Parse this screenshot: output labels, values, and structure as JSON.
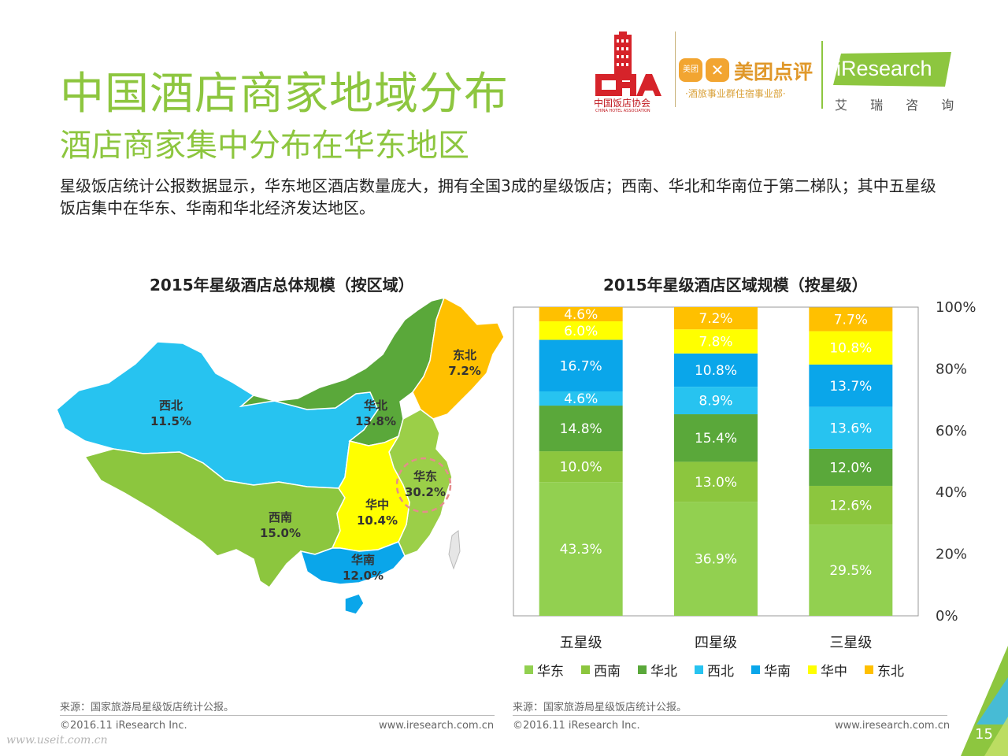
{
  "header": {
    "title": "中国酒店商家地域分布",
    "subtitle": "酒店商家集中分布在华东地区",
    "description": "星级饭店统计公报数据显示，华东地区酒店数量庞大，拥有全国3成的星级饭店；西南、华北和华南位于第二梯队；其中五星级饭店集中在华东、华南和华北经济发达地区。"
  },
  "logos": {
    "cha_name": "中国饭店协会",
    "cha_en": "CHINA HOTEL ASSOCIATION",
    "cha_mark": "CHA",
    "meituan_small": "美团",
    "meituan_name": "美团点评",
    "meituan_sub": "·酒旅事业群住宿事业部·",
    "iresearch_name": "iResearch",
    "iresearch_cn": "艾 瑞 咨 询"
  },
  "colors": {
    "华东": "#92d050",
    "西南": "#8cc63e",
    "华北": "#5aa83a",
    "西北": "#27c3f0",
    "华南": "#0aa6ea",
    "华中": "#ffff00",
    "东北": "#ffc000",
    "accent": "#8dc63f"
  },
  "chart_data": [
    {
      "type": "map",
      "title": "2015年星级酒店总体规模（按区域）",
      "regions": [
        {
          "name": "西北",
          "value": "11.5%"
        },
        {
          "name": "华北",
          "value": "13.8%"
        },
        {
          "name": "东北",
          "value": "7.2%"
        },
        {
          "name": "华东",
          "value": "30.2%"
        },
        {
          "name": "华中",
          "value": "10.4%"
        },
        {
          "name": "西南",
          "value": "15.0%"
        },
        {
          "name": "华南",
          "value": "12.0%"
        }
      ]
    },
    {
      "type": "bar",
      "stacked": true,
      "title": "2015年星级酒店区域规模（按星级）",
      "categories": [
        "五星级",
        "四星级",
        "三星级"
      ],
      "yticks": [
        "0%",
        "20%",
        "40%",
        "60%",
        "80%",
        "100%"
      ],
      "ylim": [
        0,
        100
      ],
      "legend_position": "bottom",
      "series": [
        {
          "name": "华东",
          "values": [
            43.3,
            36.9,
            29.5
          ],
          "labels": [
            "43.3%",
            "36.9%",
            "29.5%"
          ]
        },
        {
          "name": "西南",
          "values": [
            10.0,
            13.0,
            12.6
          ],
          "labels": [
            "10.0%",
            "13.0%",
            "12.6%"
          ]
        },
        {
          "name": "华北",
          "values": [
            14.8,
            15.4,
            12.0
          ],
          "labels": [
            "14.8%",
            "15.4%",
            "12.0%"
          ]
        },
        {
          "name": "西北",
          "values": [
            4.6,
            8.9,
            13.6
          ],
          "labels": [
            "4.6%",
            "8.9%",
            "13.6%"
          ]
        },
        {
          "name": "华南",
          "values": [
            16.7,
            10.8,
            13.7
          ],
          "labels": [
            "16.7%",
            "10.8%",
            "13.7%"
          ]
        },
        {
          "name": "华中",
          "values": [
            6.0,
            7.8,
            10.8
          ],
          "labels": [
            "6.0%",
            "7.8%",
            "10.8%"
          ]
        },
        {
          "name": "东北",
          "values": [
            4.6,
            7.2,
            7.7
          ],
          "labels": [
            "4.6%",
            "7.2%",
            "7.7%"
          ]
        }
      ]
    }
  ],
  "footer": {
    "source_left": "来源：国家旅游局星级饭店统计公报。",
    "source_right": "来源：国家旅游局星级饭店统计公报。",
    "copyright_left": "©2016.11 iResearch Inc.",
    "copyright_right": "©2016.11 iResearch Inc.",
    "url_left": "www.iresearch.com.cn",
    "url_right": "www.iresearch.com.cn",
    "watermark": "www.useit.com.cn",
    "page_number": "15"
  }
}
